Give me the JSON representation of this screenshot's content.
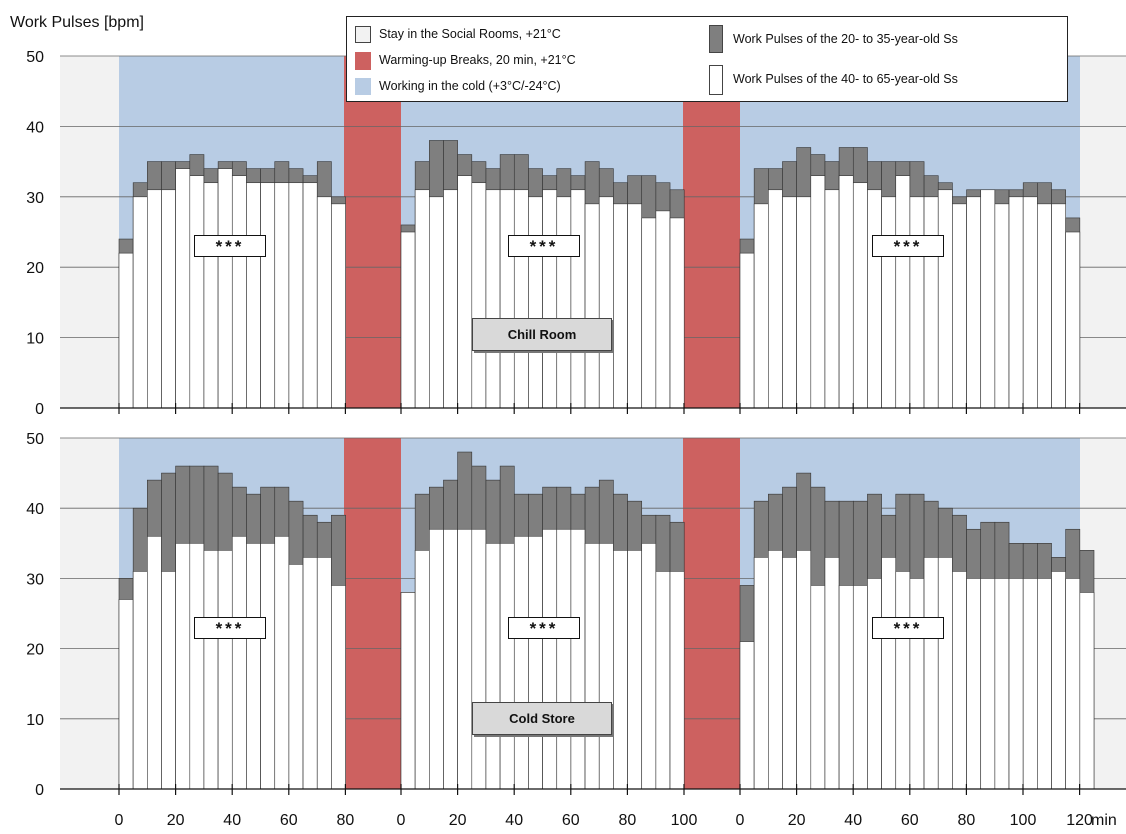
{
  "chart_data": {
    "type": "bar",
    "ylabel": "Work Pulses [bpm]",
    "x_unit": "min",
    "ylim": [
      0,
      50
    ],
    "yticks": [
      0,
      10,
      20,
      30,
      40,
      50
    ],
    "xtick_labels": [
      "0",
      "20",
      "40",
      "60",
      "80",
      "0",
      "20",
      "40",
      "60",
      "80",
      "100",
      "0",
      "20",
      "40",
      "60",
      "80",
      "100",
      "120"
    ],
    "colors": {
      "social_rooms": "#f2f2f2",
      "warming_breaks": "#cd6160",
      "cold_work": "#b8cce4",
      "young_pulses": "#7f7f7f",
      "old_pulses": "#ffffff"
    },
    "legend": {
      "social_rooms": "Stay in the Social Rooms, +21°C",
      "warming_breaks": "Warming-up Breaks, 20 min, +21°C",
      "cold_work": "Working in the cold (+3°C/-24°C)",
      "young": "Work Pulses of the 20- to 35-year-old Ss",
      "old": "Work Pulses of the 40- to 65-year-old Ss"
    },
    "panels": [
      {
        "name": "Chill Room",
        "significance": "***",
        "segments": [
          {
            "young": [
              24,
              32,
              35,
              35,
              35,
              36,
              34,
              35,
              35,
              34,
              34,
              35,
              34,
              33,
              35,
              30
            ],
            "old": [
              22,
              30,
              31,
              31,
              34,
              33,
              32,
              34,
              33,
              32,
              32,
              32,
              32,
              32,
              30,
              29
            ]
          },
          {
            "young": [
              26,
              35,
              38,
              38,
              36,
              35,
              34,
              36,
              36,
              34,
              33,
              34,
              33,
              35,
              34,
              32,
              33,
              33,
              32,
              31
            ],
            "old": [
              25,
              31,
              30,
              31,
              33,
              32,
              31,
              31,
              31,
              30,
              31,
              30,
              31,
              29,
              30,
              29,
              29,
              27,
              28,
              27
            ]
          },
          {
            "young": [
              24,
              34,
              34,
              35,
              37,
              36,
              35,
              37,
              37,
              35,
              35,
              35,
              35,
              33,
              32,
              30,
              31,
              31,
              31,
              31,
              32,
              32,
              31,
              27
            ],
            "old": [
              22,
              29,
              31,
              30,
              30,
              33,
              31,
              33,
              32,
              31,
              30,
              33,
              30,
              30,
              31,
              29,
              30,
              31,
              29,
              30,
              30,
              29,
              29,
              25
            ]
          }
        ]
      },
      {
        "name": "Cold Store",
        "significance": "***",
        "segments": [
          {
            "young": [
              30,
              40,
              44,
              45,
              46,
              46,
              46,
              45,
              43,
              42,
              43,
              43,
              41,
              39,
              38,
              39
            ],
            "old": [
              27,
              31,
              36,
              31,
              35,
              35,
              34,
              34,
              36,
              35,
              35,
              36,
              32,
              33,
              33,
              29
            ]
          },
          {
            "young": [
              28,
              42,
              43,
              44,
              48,
              46,
              44,
              46,
              42,
              42,
              43,
              43,
              42,
              43,
              44,
              42,
              41,
              39,
              39,
              38
            ],
            "old": [
              28,
              34,
              37,
              37,
              37,
              37,
              35,
              35,
              36,
              36,
              37,
              37,
              37,
              35,
              35,
              34,
              34,
              35,
              31,
              31
            ]
          },
          {
            "young": [
              29,
              41,
              42,
              43,
              45,
              43,
              41,
              41,
              41,
              42,
              39,
              42,
              42,
              41,
              40,
              39,
              37,
              38,
              38,
              35,
              35,
              35,
              33,
              37,
              34
            ],
            "old": [
              21,
              33,
              34,
              33,
              34,
              29,
              33,
              29,
              29,
              30,
              33,
              31,
              30,
              33,
              33,
              31,
              30,
              30,
              30,
              30,
              30,
              30,
              31,
              30,
              28
            ]
          }
        ]
      }
    ]
  }
}
